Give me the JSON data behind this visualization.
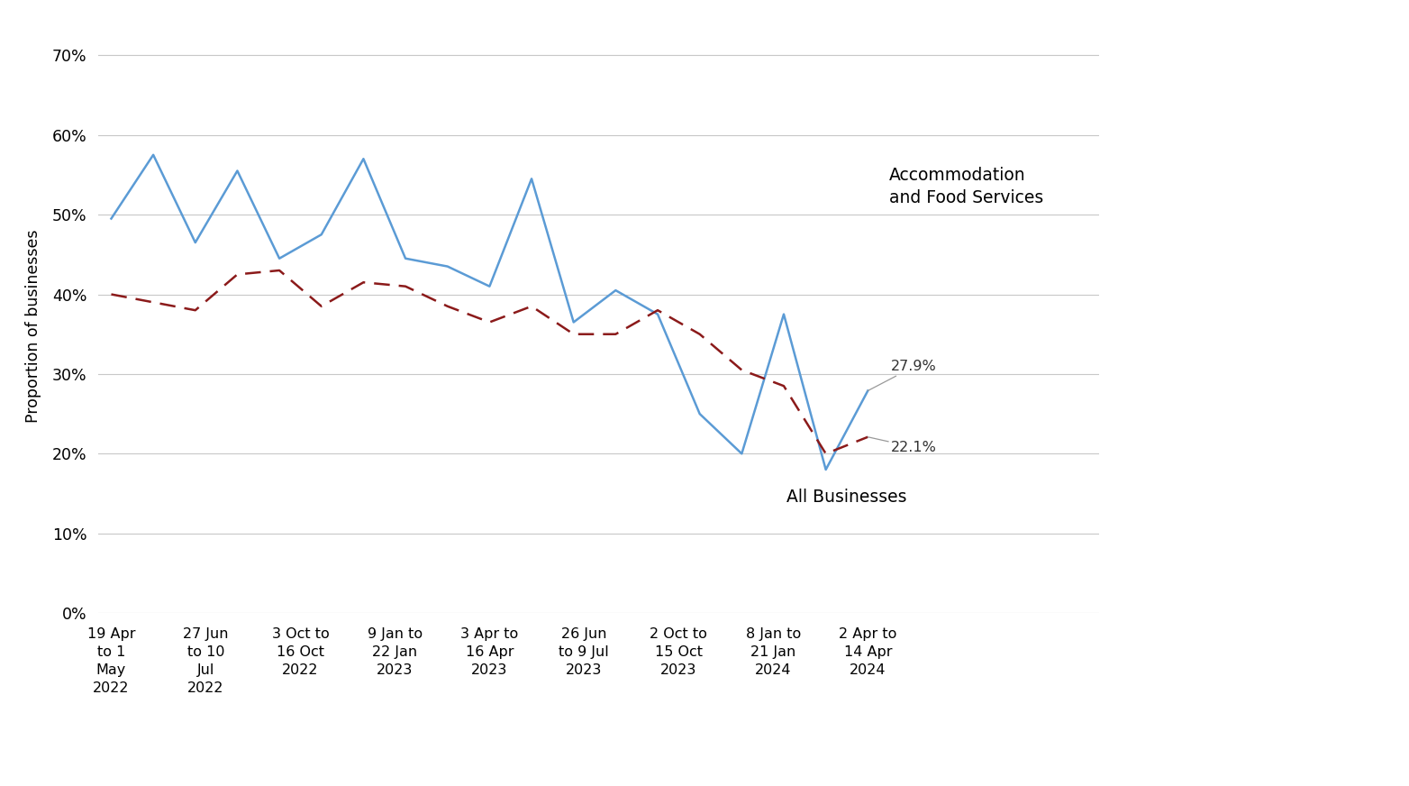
{
  "x_labels": [
    "19 Apr\nto 1\nMay\n2022",
    "27 Jun\nto 10\nJul\n2022",
    "3 Oct to\n16 Oct\n2022",
    "9 Jan to\n22 Jan\n2023",
    "3 Apr to\n16 Apr\n2023",
    "26 Jun\nto 9 Jul\n2023",
    "2 Oct to\n15 Oct\n2023",
    "8 Jan to\n21 Jan\n2024",
    "2 Apr to\n14 Apr\n2024"
  ],
  "accom_y": [
    0.495,
    0.575,
    0.465,
    0.555,
    0.445,
    0.475,
    0.57,
    0.445,
    0.435,
    0.41,
    0.545,
    0.365,
    0.405,
    0.375,
    0.25,
    0.2,
    0.375,
    0.18,
    0.279
  ],
  "all_y": [
    0.4,
    0.39,
    0.38,
    0.425,
    0.43,
    0.385,
    0.415,
    0.41,
    0.385,
    0.365,
    0.385,
    0.35,
    0.35,
    0.38,
    0.35,
    0.305,
    0.285,
    0.2,
    0.221
  ],
  "n_points": 19,
  "line_color_accom": "#5B9BD5",
  "line_color_all": "#8B1A1A",
  "ylabel": "Proportion of businesses",
  "ylim_min": 0.0,
  "ylim_max": 0.72,
  "yticks": [
    0.0,
    0.1,
    0.2,
    0.3,
    0.4,
    0.5,
    0.6,
    0.7
  ],
  "grid_color": "#C8C8C8",
  "accom_label": "Accommodation\nand Food Services",
  "all_biz_label": "All Businesses",
  "label_279": "27.9%",
  "label_221": "22.1%"
}
